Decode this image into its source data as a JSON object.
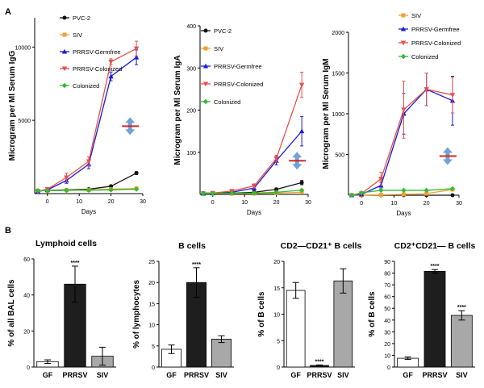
{
  "panel_labels": {
    "a": "A",
    "b": "B"
  },
  "colors": {
    "PVC-2": "#111111",
    "SIV": "#f0a030",
    "PRRSV-Germfree": "#1a1ad8",
    "PRRSV-Colonized": "#e8504a",
    "Colonized": "#33bb33",
    "arrow": "#6fa2d6",
    "bar_red": "#dd2222",
    "GF": "#ffffff",
    "PRRSV": "#1e1e1e",
    "SIVbar": "#a8a8a8"
  },
  "chart_data": [
    {
      "id": "igg",
      "type": "line",
      "ylabel": "Microgram per Ml Serum IgG",
      "xlabel": "Days",
      "xlim": [
        -4,
        30
      ],
      "ylim": [
        0,
        12000
      ],
      "xticks": [
        0,
        10,
        20,
        30
      ],
      "yticks": [
        5000,
        10000
      ],
      "x": [
        -3,
        0,
        6,
        13,
        20,
        28
      ],
      "legend": [
        "PVC-2",
        "SIV",
        "PRRSV-Germfree",
        "PRRSV-Colonized",
        "Colonized"
      ],
      "series": [
        {
          "name": "PVC-2",
          "marker": "circle",
          "values": [
            200,
            220,
            250,
            300,
            500,
            1400
          ],
          "err": [
            0,
            0,
            0,
            0,
            80,
            100
          ]
        },
        {
          "name": "SIV",
          "marker": "square",
          "values": [
            200,
            200,
            230,
            250,
            300,
            350
          ],
          "err": [
            0,
            0,
            0,
            0,
            0,
            0
          ]
        },
        {
          "name": "PRRSV-Germfree",
          "marker": "tri-up",
          "values": [
            150,
            250,
            900,
            2000,
            8000,
            9300
          ],
          "err": [
            0,
            0,
            200,
            300,
            300,
            500
          ]
        },
        {
          "name": "PRRSV-Colonized",
          "marker": "tri-down",
          "values": [
            150,
            300,
            1100,
            2200,
            9000,
            9900
          ],
          "err": [
            0,
            0,
            300,
            300,
            200,
            500
          ]
        },
        {
          "name": "Colonized",
          "marker": "diamond",
          "values": [
            200,
            200,
            220,
            230,
            250,
            300
          ],
          "err": [
            0,
            0,
            0,
            0,
            0,
            0
          ]
        }
      ],
      "annotation": {
        "x": 26,
        "y": 4600
      }
    },
    {
      "id": "iga",
      "type": "line",
      "ylabel": "Microgram per Ml Serum IgA",
      "xlabel": "Days",
      "xlim": [
        -4,
        30
      ],
      "ylim": [
        0,
        400
      ],
      "xticks": [
        0,
        10,
        20,
        30
      ],
      "yticks": [
        100,
        200,
        300,
        400
      ],
      "x": [
        -3,
        0,
        6,
        13,
        20,
        28
      ],
      "legend": [
        "PVC-2",
        "SIV",
        "PRRSV-Germfree",
        "PRRSV-Colonized",
        "Colonized"
      ],
      "series": [
        {
          "name": "PVC-2",
          "marker": "circle",
          "values": [
            3,
            3,
            3,
            5,
            12,
            28
          ],
          "err": [
            0,
            0,
            0,
            0,
            3,
            5
          ]
        },
        {
          "name": "SIV",
          "marker": "square",
          "values": [
            2,
            2,
            2,
            2,
            3,
            5
          ],
          "err": [
            0,
            0,
            0,
            0,
            0,
            0
          ]
        },
        {
          "name": "PRRSV-Germfree",
          "marker": "tri-up",
          "values": [
            2,
            3,
            5,
            15,
            80,
            150
          ],
          "err": [
            0,
            0,
            2,
            5,
            10,
            35
          ]
        },
        {
          "name": "PRRSV-Colonized",
          "marker": "tri-down",
          "values": [
            2,
            3,
            8,
            20,
            85,
            260
          ],
          "err": [
            0,
            0,
            3,
            5,
            8,
            30
          ]
        },
        {
          "name": "Colonized",
          "marker": "diamond",
          "values": [
            2,
            2,
            3,
            3,
            5,
            10
          ],
          "err": [
            0,
            0,
            0,
            0,
            0,
            0
          ]
        }
      ],
      "annotation": {
        "x": 26.5,
        "y": 80
      }
    },
    {
      "id": "igm",
      "type": "line",
      "ylabel": "Microgram per Ml Serum IgM",
      "xlabel": "Days",
      "xlim": [
        -4,
        30
      ],
      "ylim": [
        0,
        2000
      ],
      "xticks": [
        0,
        10,
        20,
        30
      ],
      "yticks": [
        500,
        1000,
        1500,
        2000
      ],
      "x": [
        -3,
        0,
        6,
        13,
        20,
        28
      ],
      "legend": [
        "SIV",
        "PRRSV-Germfree",
        "PRRSV-Colonized",
        "Colonized"
      ],
      "series": [
        {
          "name": "PVC-2",
          "marker": "circle",
          "values": [
            0,
            0,
            0,
            0,
            0,
            0
          ],
          "err": [
            0,
            0,
            0,
            0,
            0,
            0
          ]
        },
        {
          "name": "SIV",
          "marker": "square",
          "values": [
            0,
            0,
            5,
            10,
            20,
            70
          ],
          "err": [
            0,
            0,
            0,
            0,
            0,
            0
          ]
        },
        {
          "name": "PRRSV-Germfree",
          "marker": "tri-up",
          "values": [
            0,
            10,
            120,
            1000,
            1300,
            1160
          ],
          "err": [
            0,
            0,
            40,
            250,
            200,
            300
          ]
        },
        {
          "name": "PRRSV-Colonized",
          "marker": "tri-down",
          "values": [
            0,
            20,
            200,
            1050,
            1300,
            1230
          ],
          "err": [
            0,
            0,
            80,
            350,
            200,
            220
          ]
        },
        {
          "name": "Colonized",
          "marker": "diamond",
          "values": [
            0,
            30,
            60,
            60,
            60,
            80
          ],
          "err": [
            0,
            0,
            0,
            0,
            0,
            0
          ]
        }
      ],
      "annotation": {
        "x": 26.5,
        "y": 480
      }
    },
    {
      "id": "lymphoid",
      "type": "bar",
      "title": "Lymphoid cells",
      "ylabel": "% of all BAL cells",
      "categories": [
        "GF",
        "PRRSV",
        "SIV"
      ],
      "values": [
        3,
        46,
        6
      ],
      "err": [
        1,
        10,
        5
      ],
      "ylim": [
        0,
        60
      ],
      "yticks": [
        0,
        20,
        40,
        60
      ],
      "sig": [
        "",
        "****",
        ""
      ]
    },
    {
      "id": "bcells",
      "type": "bar",
      "title": "B cells",
      "ylabel": "% of lymphocytes",
      "categories": [
        "GF",
        "PRRSV",
        "SIV"
      ],
      "values": [
        4.2,
        20,
        6.6
      ],
      "err": [
        1,
        3.5,
        0.8
      ],
      "ylim": [
        0,
        25
      ],
      "yticks": [
        0,
        5,
        10,
        15,
        20,
        25
      ],
      "sig": [
        "",
        "****",
        ""
      ]
    },
    {
      "id": "cd2neg",
      "type": "bar",
      "title": "CD2—CD21⁺ B cells",
      "ylabel": "% of B cells",
      "categories": [
        "GF",
        "PRRSV",
        "SIV"
      ],
      "values": [
        14.5,
        0.3,
        16.3
      ],
      "err": [
        1.5,
        0.1,
        2.3
      ],
      "ylim": [
        0,
        20
      ],
      "yticks": [
        0,
        5,
        10,
        15,
        20
      ],
      "sig": [
        "",
        "****",
        ""
      ]
    },
    {
      "id": "cd2pos",
      "type": "bar",
      "title": "CD2⁺CD21— B cells",
      "ylabel": "% of B cells",
      "categories": [
        "GF",
        "PRRSV",
        "SIV"
      ],
      "values": [
        7.5,
        81.5,
        44
      ],
      "err": [
        1,
        1.5,
        4
      ],
      "ylim": [
        0,
        90
      ],
      "yticks": [
        0,
        10,
        20,
        30,
        40,
        50,
        60,
        70,
        80,
        90
      ],
      "sig": [
        "",
        "****",
        "****"
      ]
    }
  ]
}
